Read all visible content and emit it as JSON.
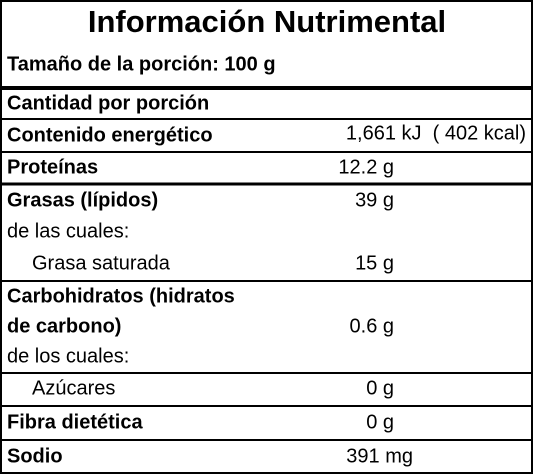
{
  "header": {
    "title": "Información Nutrimental",
    "serving": "Tamaño de la porción: 100 g"
  },
  "table": {
    "heading": "Cantidad por porción",
    "rows": [
      {
        "label": "Contenido energético",
        "value": "1,661 kJ  ( 402 kcal)"
      },
      {
        "label": "Proteínas",
        "value": "12.2 g"
      },
      {
        "label": "Grasas (lípidos)",
        "value": "39 g"
      },
      {
        "label": "de las cuales:"
      },
      {
        "label": "Grasa saturada",
        "value": "15 g"
      },
      {
        "label": "Carbohidratos (hidratos"
      },
      {
        "label": "de carbono)",
        "value": "0.6 g"
      },
      {
        "label": "de los cuales:"
      },
      {
        "label": "Azúcares",
        "value": "0 g"
      },
      {
        "label": "Fibra dietética",
        "value": "0 g"
      },
      {
        "label": "Sodio",
        "value": "391 mg"
      }
    ]
  }
}
